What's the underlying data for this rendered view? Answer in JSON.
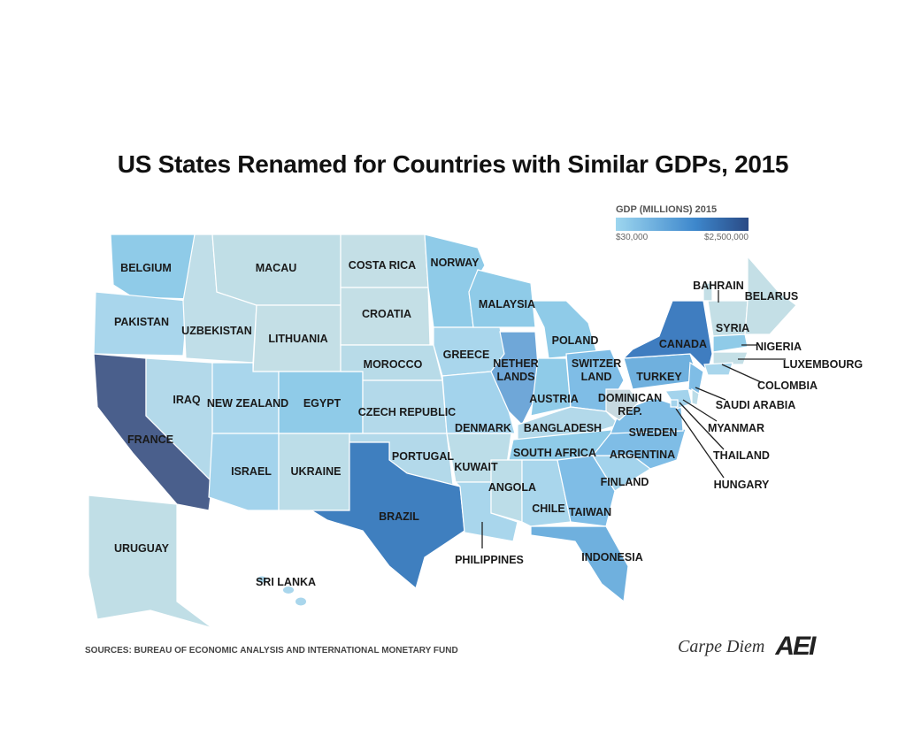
{
  "title": "US States Renamed for Countries with Similar GDPs, 2015",
  "legend": {
    "title": "GDP (MILLIONS) 2015",
    "min_label": "$30,000",
    "max_label": "$2,500,000",
    "color_low": "#9dd6ef",
    "color_high": "#2a4a85"
  },
  "regions": [
    {
      "label": "BELGIUM",
      "color": "#8fcbe8"
    },
    {
      "label": "PAKISTAN",
      "color": "#a9d6ec"
    },
    {
      "label": "FRANCE",
      "color": "#4a5f8c"
    },
    {
      "label": "UZBEKISTAN",
      "color": "#c0dee8"
    },
    {
      "label": "MACAU",
      "color": "#c0dee6"
    },
    {
      "label": "LITHUANIA",
      "color": "#c4dfe6"
    },
    {
      "label": "IRAQ",
      "color": "#b3d9ea"
    },
    {
      "label": "NEW ZEALAND",
      "color": "#a9d6ec"
    },
    {
      "label": "EGYPT",
      "color": "#8fcbe8"
    },
    {
      "label": "ISRAEL",
      "color": "#a3d3ec"
    },
    {
      "label": "UKRAINE",
      "color": "#bcdde8"
    },
    {
      "label": "COSTA RICA",
      "color": "#c4dfe6"
    },
    {
      "label": "CROATIA",
      "color": "#c4dfe6"
    },
    {
      "label": "MOROCCO",
      "color": "#b8dbe8"
    },
    {
      "label": "CZECH REPUBLIC",
      "color": "#b3d9ea"
    },
    {
      "label": "PORTUGAL",
      "color": "#b3d9ea"
    },
    {
      "label": "BRAZIL",
      "color": "#3f7fbf"
    },
    {
      "label": "NORWAY",
      "color": "#8fcbe8"
    },
    {
      "label": "GREECE",
      "color": "#a9d6ec"
    },
    {
      "label": "DENMARK",
      "color": "#a3d3ec"
    },
    {
      "label": "KUWAIT",
      "color": "#bcdde8"
    },
    {
      "label": "PHILIPPINES",
      "color": "#a9d6ec"
    },
    {
      "label": "MALAYSIA",
      "color": "#8fcbe8"
    },
    {
      "label": "NETHER LANDS",
      "color": "#6fa7d8"
    },
    {
      "label": "POLAND",
      "color": "#8fcbe8"
    },
    {
      "label": "AUSTRIA",
      "color": "#8fcbe8"
    },
    {
      "label": "SWITZER LAND",
      "color": "#7fbde6"
    },
    {
      "label": "BANGLADESH",
      "color": "#b3d9ea"
    },
    {
      "label": "SOUTH AFRICA",
      "color": "#8fcbe8"
    },
    {
      "label": "ANGOLA",
      "color": "#bcdde8"
    },
    {
      "label": "CHILE",
      "color": "#a9d6ec"
    },
    {
      "label": "TAIWAN",
      "color": "#7fbde6"
    },
    {
      "label": "INDONESIA",
      "color": "#6fb0de"
    },
    {
      "label": "FINLAND",
      "color": "#a3d3ec"
    },
    {
      "label": "ARGENTINA",
      "color": "#7fbde6"
    },
    {
      "label": "SWEDEN",
      "color": "#7fbde6"
    },
    {
      "label": "DOMINICAN REP.",
      "color": "#c7d9e0"
    },
    {
      "label": "TURKEY",
      "color": "#6fb0de"
    },
    {
      "label": "CANADA",
      "color": "#3f7dc0"
    },
    {
      "label": "SAUDI ARABIA",
      "color": "#7fbde6"
    },
    {
      "label": "MYANMAR",
      "color": "#a3d3ec"
    },
    {
      "label": "THAILAND",
      "color": "#bcdde8"
    },
    {
      "label": "HUNGARY",
      "color": "#a3d3ec"
    },
    {
      "label": "SYRIA",
      "color": "#c4dfe6"
    },
    {
      "label": "BAHRAIN",
      "color": "#c4dfe6"
    },
    {
      "label": "BELARUS",
      "color": "#c4dfe6"
    },
    {
      "label": "NIGERIA",
      "color": "#8fcbe8"
    },
    {
      "label": "LUXEMBOURG",
      "color": "#c4dfe6"
    },
    {
      "label": "COLOMBIA",
      "color": "#a9d6ec"
    },
    {
      "label": "URUGUAY",
      "color": "#c0dee6"
    },
    {
      "label": "SRI LANKA",
      "color": "#a9d6ec"
    }
  ],
  "sources": "SOURCES: BUREAU OF ECONOMIC ANALYSIS AND INTERNATIONAL MONETARY FUND",
  "brand": {
    "blog": "Carpe Diem",
    "logo": "AEI"
  }
}
